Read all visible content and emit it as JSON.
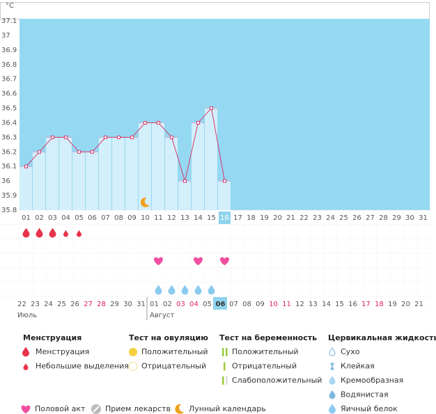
{
  "chart_data": {
    "type": "line",
    "y_unit": "°C",
    "categories": [
      "01",
      "02",
      "03",
      "04",
      "05",
      "06",
      "07",
      "08",
      "09",
      "10",
      "11",
      "12",
      "13",
      "14",
      "15",
      "16",
      "17",
      "18",
      "19",
      "20",
      "21",
      "22",
      "23",
      "24",
      "25",
      "26",
      "27",
      "28",
      "29",
      "30",
      "31"
    ],
    "values": [
      36.1,
      36.2,
      36.3,
      36.3,
      36.2,
      36.2,
      36.3,
      36.3,
      36.3,
      36.4,
      36.4,
      36.3,
      36.0,
      36.4,
      36.5,
      36.0,
      null,
      null,
      null,
      null,
      null,
      null,
      null,
      null,
      null,
      null,
      null,
      null,
      null,
      null,
      null
    ],
    "color": "#d63a6b",
    "ylim": [
      35.8,
      37.1
    ],
    "yticks": [
      35.8,
      35.9,
      36,
      36.1,
      36.2,
      36.3,
      36.4,
      36.5,
      36.6,
      36.7,
      36.8,
      36.9,
      37,
      37.1
    ],
    "current_day": "16",
    "moon": "10",
    "menstruation": [
      "01",
      "02",
      "03"
    ],
    "light_bleeding": [
      "04",
      "05"
    ],
    "intercourse": [
      "11",
      "14",
      "16"
    ],
    "fluid": [
      "11",
      "12",
      "13",
      "14",
      "15"
    ],
    "dates": [
      {
        "label": "22"
      },
      {
        "label": "23"
      },
      {
        "label": "24"
      },
      {
        "label": "25"
      },
      {
        "label": "26"
      },
      {
        "label": "27",
        "color": "#e0245e"
      },
      {
        "label": "28",
        "color": "#e0245e"
      },
      {
        "label": "29"
      },
      {
        "label": "30"
      },
      {
        "label": "31"
      },
      {
        "label": "01"
      },
      {
        "label": "02"
      },
      {
        "label": "03",
        "color": "#e0245e"
      },
      {
        "label": "04",
        "color": "#e0245e"
      },
      {
        "label": "05"
      },
      {
        "label": "06"
      },
      {
        "label": "07"
      },
      {
        "label": "08"
      },
      {
        "label": "09"
      },
      {
        "label": "10",
        "color": "#e0245e"
      },
      {
        "label": "11",
        "color": "#e0245e"
      },
      {
        "label": "12"
      },
      {
        "label": "13"
      },
      {
        "label": "14"
      },
      {
        "label": "15"
      },
      {
        "label": "16"
      },
      {
        "label": "17",
        "color": "#e0245e"
      },
      {
        "label": "18",
        "color": "#e0245e"
      },
      {
        "label": "19"
      },
      {
        "label": "20"
      },
      {
        "label": "21"
      }
    ],
    "months": [
      {
        "label": "Июль",
        "from": "22"
      },
      {
        "label": "Август",
        "from": "01"
      }
    ]
  },
  "legend": {
    "sections": [
      {
        "title": "Менструация",
        "items": [
          "Менструация",
          "Небольшие выделения"
        ]
      },
      {
        "title": "Тест на овуляцию",
        "items": [
          "Положительный",
          "Отрицательный"
        ]
      },
      {
        "title": "Тест на беременность",
        "items": [
          "Положительный",
          "Отрицательный",
          "Слабоположительный"
        ]
      },
      {
        "title": "Цервикальная жидкость",
        "items": [
          "Сухо",
          "Клейкая",
          "Кремообразная",
          "Водянистая",
          "Яичный белок"
        ]
      }
    ],
    "other": [
      "Половой акт",
      "Прием лекарств",
      "Лунный календарь"
    ]
  }
}
